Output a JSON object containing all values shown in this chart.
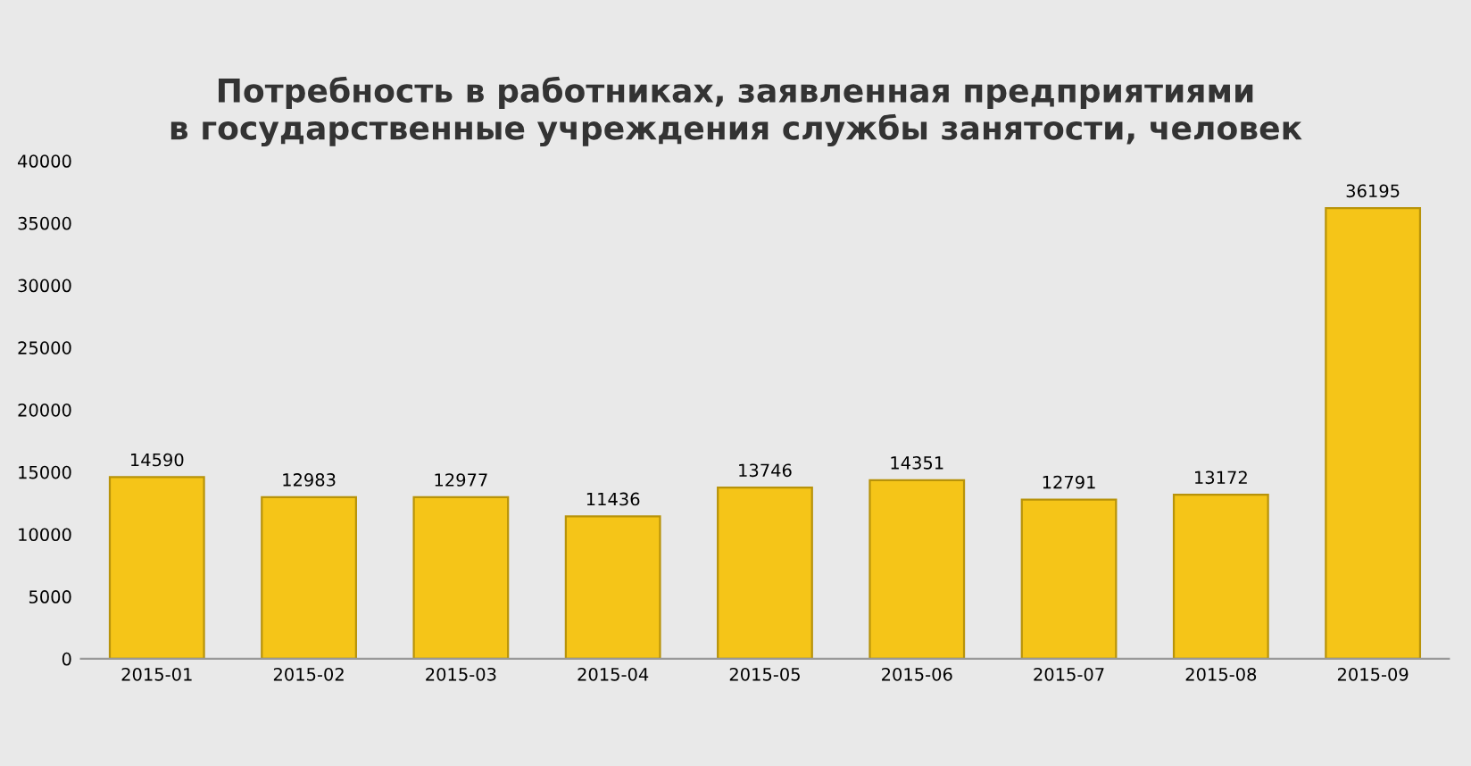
{
  "chart_data": {
    "type": "bar",
    "title": "Потребность в работниках, заявленная предприятиями\nв государственные учреждения службы занятости, человек",
    "categories": [
      "2015-01",
      "2015-02",
      "2015-03",
      "2015-04",
      "2015-05",
      "2015-06",
      "2015-07",
      "2015-08",
      "2015-09"
    ],
    "values": [
      14590,
      12983,
      12977,
      11436,
      13746,
      14351,
      12791,
      13172,
      36195
    ],
    "color": "#f5c518",
    "ylim": [
      0,
      40000
    ],
    "yticks": [
      0,
      5000,
      10000,
      15000,
      20000,
      25000,
      30000,
      35000,
      40000
    ],
    "data_labels": true,
    "grid": false,
    "legend": false
  }
}
